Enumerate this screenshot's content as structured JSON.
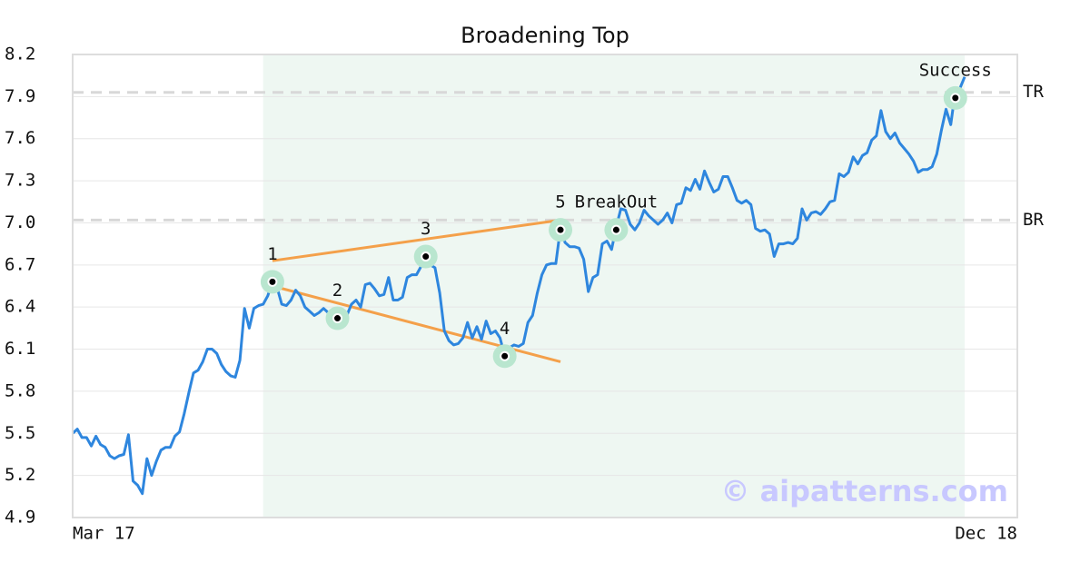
{
  "chart_data": {
    "type": "line",
    "title": "Broadening Top",
    "color": "#2e86de",
    "values": [
      5.5,
      5.53,
      5.47,
      5.47,
      5.41,
      5.48,
      5.42,
      5.4,
      5.34,
      5.32,
      5.34,
      5.35,
      5.49,
      5.16,
      5.13,
      5.07,
      5.32,
      5.2,
      5.3,
      5.38,
      5.4,
      5.4,
      5.48,
      5.51,
      5.64,
      5.79,
      5.93,
      5.95,
      6.01,
      6.1,
      6.1,
      6.07,
      5.99,
      5.94,
      5.91,
      5.9,
      6.02,
      6.39,
      6.25,
      6.39,
      6.41,
      6.42,
      6.48,
      6.58,
      6.54,
      6.42,
      6.41,
      6.45,
      6.52,
      6.48,
      6.4,
      6.37,
      6.34,
      6.36,
      6.39,
      6.36,
      6.34,
      6.32,
      6.36,
      6.34,
      6.42,
      6.45,
      6.4,
      6.56,
      6.57,
      6.53,
      6.48,
      6.49,
      6.61,
      6.45,
      6.45,
      6.47,
      6.61,
      6.63,
      6.63,
      6.69,
      6.79,
      6.7,
      6.68,
      6.5,
      6.23,
      6.16,
      6.13,
      6.14,
      6.18,
      6.29,
      6.18,
      6.26,
      6.17,
      6.3,
      6.21,
      6.23,
      6.18,
      6.05,
      6.11,
      6.13,
      6.12,
      6.14,
      6.29,
      6.34,
      6.5,
      6.63,
      6.7,
      6.71,
      6.71,
      6.96,
      6.86,
      6.83,
      6.83,
      6.82,
      6.74,
      6.51,
      6.61,
      6.63,
      6.85,
      6.87,
      6.81,
      6.97,
      7.1,
      7.09,
      6.99,
      6.95,
      7.0,
      7.09,
      7.05,
      7.02,
      6.99,
      7.02,
      7.07,
      7.0,
      7.13,
      7.14,
      7.25,
      7.23,
      7.31,
      7.24,
      7.37,
      7.29,
      7.22,
      7.24,
      7.33,
      7.33,
      7.25,
      7.16,
      7.14,
      7.16,
      7.13,
      6.96,
      6.94,
      6.95,
      6.92,
      6.76,
      6.85,
      6.85,
      6.86,
      6.85,
      6.89,
      7.1,
      7.02,
      7.07,
      7.08,
      7.06,
      7.1,
      7.15,
      7.16,
      7.35,
      7.33,
      7.36,
      7.47,
      7.42,
      7.48,
      7.5,
      7.59,
      7.62,
      7.8,
      7.65,
      7.6,
      7.64,
      7.57,
      7.53,
      7.49,
      7.44,
      7.36,
      7.38,
      7.38,
      7.4,
      7.49,
      7.66,
      7.81,
      7.7,
      7.94,
      7.96,
      8.04
    ],
    "xlim": [
      0,
      192
    ],
    "xticks": [
      {
        "value": 0,
        "label": "Mar 17"
      },
      {
        "value": 192,
        "label": "Dec 18"
      }
    ],
    "ylim": [
      4.9,
      8.2
    ],
    "yticks": [
      4.9,
      5.2,
      5.5,
      5.8,
      6.1,
      6.4,
      6.7,
      {
        "value": 7,
        "label": "7.0"
      },
      7.3,
      7.6,
      7.9,
      8.2
    ],
    "grid": true,
    "shade": {
      "x": [
        41,
        192
      ],
      "color": "#eef7f2"
    },
    "hlines": [
      {
        "label": "TR",
        "value": 7.93
      },
      {
        "label": "BR",
        "value": 7.02
      }
    ],
    "trendlines": [
      {
        "x": [
          43,
          105
        ],
        "y": [
          6.73,
          7.02
        ],
        "color": "#f4a04a"
      },
      {
        "x": [
          43,
          105
        ],
        "y": [
          6.55,
          6.01
        ],
        "color": "#f4a04a"
      }
    ],
    "markers": [
      {
        "label": "1",
        "x": 43,
        "y": 6.58
      },
      {
        "label": "2",
        "x": 57,
        "y": 6.32
      },
      {
        "label": "3",
        "x": 76,
        "y": 6.76
      },
      {
        "label": "4",
        "x": 93,
        "y": 6.05
      },
      {
        "label": "5",
        "x": 105,
        "y": 6.95
      },
      {
        "label": "BreakOut",
        "x": 117,
        "y": 6.95
      },
      {
        "label": "Success",
        "x": 190,
        "y": 7.89
      }
    ],
    "watermark": "© aipatterns.com"
  }
}
